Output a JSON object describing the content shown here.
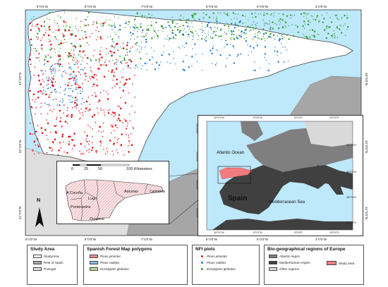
{
  "main_map": {
    "top_ticks": [
      "9°0'0\"W",
      "8°0'0\"W",
      "7°0'0\"W",
      "6°0'0\"W",
      "5°0'0\"W",
      "4°0'0\"W"
    ],
    "bottom_ticks": [
      "9°0'0\"W",
      "8°0'0\"W",
      "7°0'0\"W",
      "6°0'0\"W",
      "5°0'0\"W",
      "4°0'0\"W"
    ],
    "left_ticks": [
      "43°0'0\"N",
      "42°0'0\"N",
      "41°0'0\"N"
    ],
    "right_ticks": [
      "43°0'0\"N",
      "42°0'0\"N",
      "41°0'0\"N"
    ],
    "colors": {
      "sea": "#bee8fb",
      "study_area": "#ffffff",
      "rest_of_spain": "#a6a6a6",
      "portugal": "#dedede",
      "pinaster": "#e41a1c",
      "radiata": "#1f78d1",
      "globulus": "#33a02c"
    }
  },
  "inset_study": {
    "scale_labels": [
      "0",
      "25",
      "50",
      "100 Kilometers"
    ],
    "provinces": [
      "A Coruña",
      "Lugo",
      "Asturias",
      "Cantabria",
      "Pontevedra",
      "Ourense"
    ],
    "north": "N"
  },
  "inset_europe": {
    "top_ticks": [
      "15°0'0\"W",
      "5°0'0\"W",
      "5°0'0\"E",
      "15°0'0\"E"
    ],
    "bottom_ticks": [
      "15°0'0\"W",
      "5°0'0\"W",
      "5°0'0\"E",
      "15°0'0\"E"
    ],
    "left_ticks": [
      "55°0'0\"N",
      "50°0'0\"N",
      "45°0'0\"N",
      "40°0'0\"N"
    ],
    "right_ticks": [
      "55°0'0\"N",
      "50°0'0\"N",
      "45°0'0\"N",
      "40°0'0\"N"
    ],
    "labels": {
      "atlantic": "Atlantic Ocean",
      "spain": "Spain",
      "mediterranean": "Mediterranean Sea"
    },
    "colors": {
      "atlantic_region": "#7f7f7f",
      "mediterranean_region": "#404040",
      "other_regions": "#d9d9d9",
      "study_area": "#f07c80"
    }
  },
  "legends": {
    "study_area": {
      "title": "Study Area",
      "items": [
        {
          "label": "StudyArea",
          "color": "#ffffff"
        },
        {
          "label": "Rest of Spain",
          "color": "#a6a6a6"
        },
        {
          "label": "Portugal",
          "color": "#dedede"
        }
      ]
    },
    "forest_map": {
      "title": "Spanish Forest Map polygons",
      "items": [
        {
          "label": "Pinus pinaster",
          "color": "#f28a95"
        },
        {
          "label": "Pinus radiata",
          "color": "#8fb8e8"
        },
        {
          "label": "Eucalyptus globulus",
          "color": "#b6de8c"
        }
      ]
    },
    "nfi": {
      "title": "NFI plots",
      "items": [
        {
          "label": "Pinus pinaster",
          "color": "#e41a1c"
        },
        {
          "label": "Pinus radiata",
          "color": "#1f78d1"
        },
        {
          "label": "Eucalyptus globulus",
          "color": "#33a02c"
        }
      ]
    },
    "bioregions": {
      "title": "Bio-geographical regions of Europe",
      "items": [
        {
          "label": "Atlantic region",
          "color": "#7f7f7f"
        },
        {
          "label": "Mediterranean region",
          "color": "#404040"
        },
        {
          "label": "Other regions",
          "color": "#d9d9d9"
        }
      ],
      "study_area_label": "Study area",
      "study_area_color": "#f07c80"
    }
  }
}
